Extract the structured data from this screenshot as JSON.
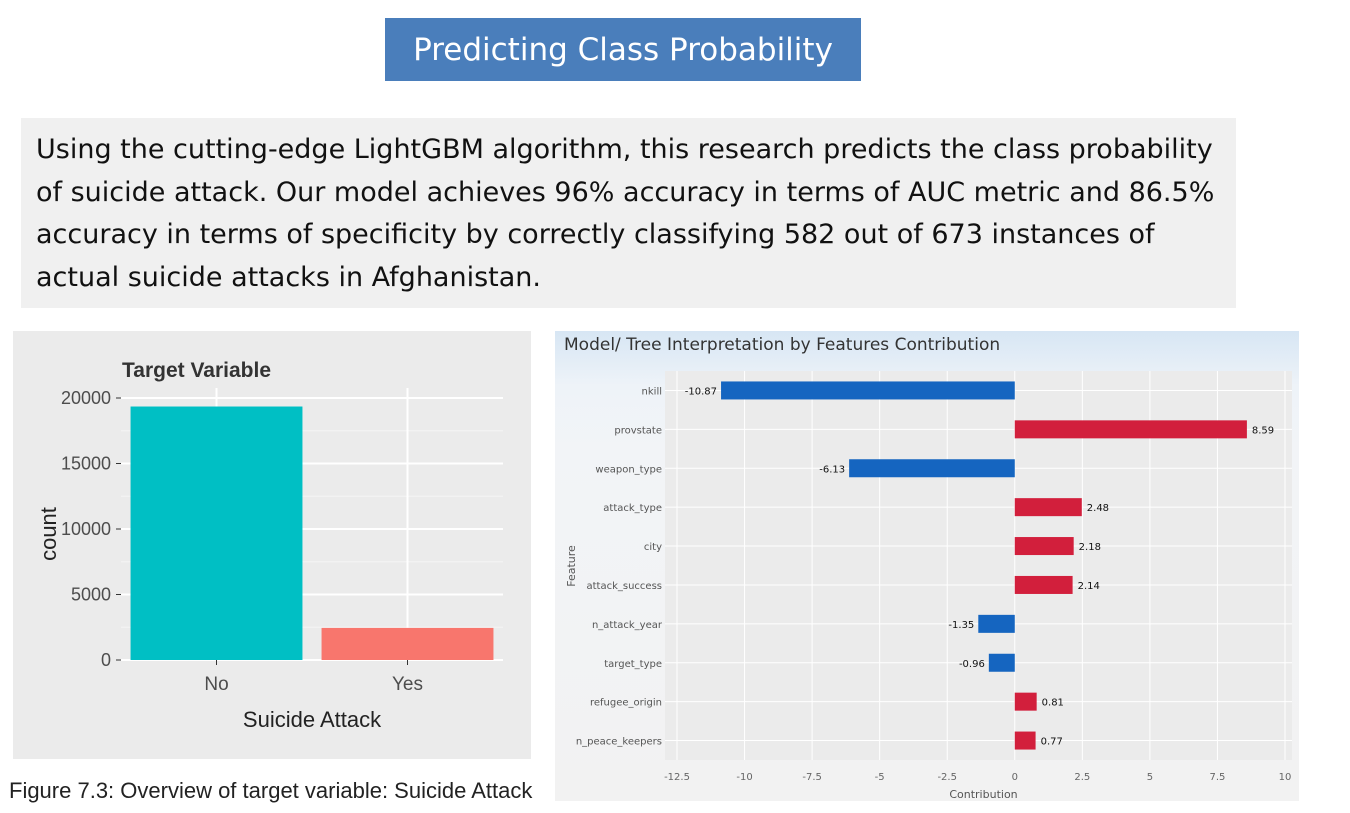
{
  "slide": {
    "title": "Predicting Class Probability",
    "description": "Using the cutting-edge LightGBM algorithm, this research predicts the class probability of suicide attack. Our model achieves 96% accuracy in terms of AUC metric and 86.5% accuracy in terms of specificity by correctly classifying 582 out of 673 instances of actual suicide attacks in Afghanistan.",
    "figure_caption": "Figure 7.3: Overview of target variable: Suicide Attack"
  },
  "chart_data": [
    {
      "type": "bar",
      "title": "Target Variable",
      "xlabel": "Suicide Attack",
      "ylabel": "count",
      "categories": [
        "No",
        "Yes"
      ],
      "values": [
        19350,
        2450
      ],
      "ylim": [
        0,
        20000
      ],
      "yticks": [
        0,
        5000,
        10000,
        15000,
        20000
      ],
      "colors": [
        "#00bfc4",
        "#f8766d"
      ],
      "grid": true,
      "background": "#ebebeb"
    },
    {
      "type": "bar",
      "orientation": "horizontal",
      "title": "Model/ Tree Interpretation by Features Contribution",
      "xlabel": "Contribution",
      "ylabel": "Feature",
      "categories": [
        "nkill",
        "provstate",
        "weapon_type",
        "attack_type",
        "city",
        "attack_success",
        "n_attack_year",
        "target_type",
        "refugee_origin",
        "n_peace_keepers"
      ],
      "values": [
        -10.87,
        8.59,
        -6.13,
        2.48,
        2.18,
        2.14,
        -1.35,
        -0.96,
        0.81,
        0.77
      ],
      "labels": [
        "-10.87",
        "8.59",
        "-6.13",
        "2.48",
        "2.18",
        "2.14",
        "-1.35",
        "-0.96",
        "0.81",
        "0.77"
      ],
      "xlim": [
        -12.5,
        10
      ],
      "xticks": [
        -12.5,
        -10,
        -7.5,
        -5,
        -2.5,
        0,
        2.5,
        5,
        7.5,
        10
      ],
      "xtick_labels": [
        "-12.5",
        "-10",
        "-7.5",
        "-5",
        "-2.5",
        "0",
        "2.5",
        "5",
        "7.5",
        "10"
      ],
      "colors": {
        "negative": "#1565c0",
        "positive": "#d21f3c"
      },
      "grid": true
    }
  ]
}
